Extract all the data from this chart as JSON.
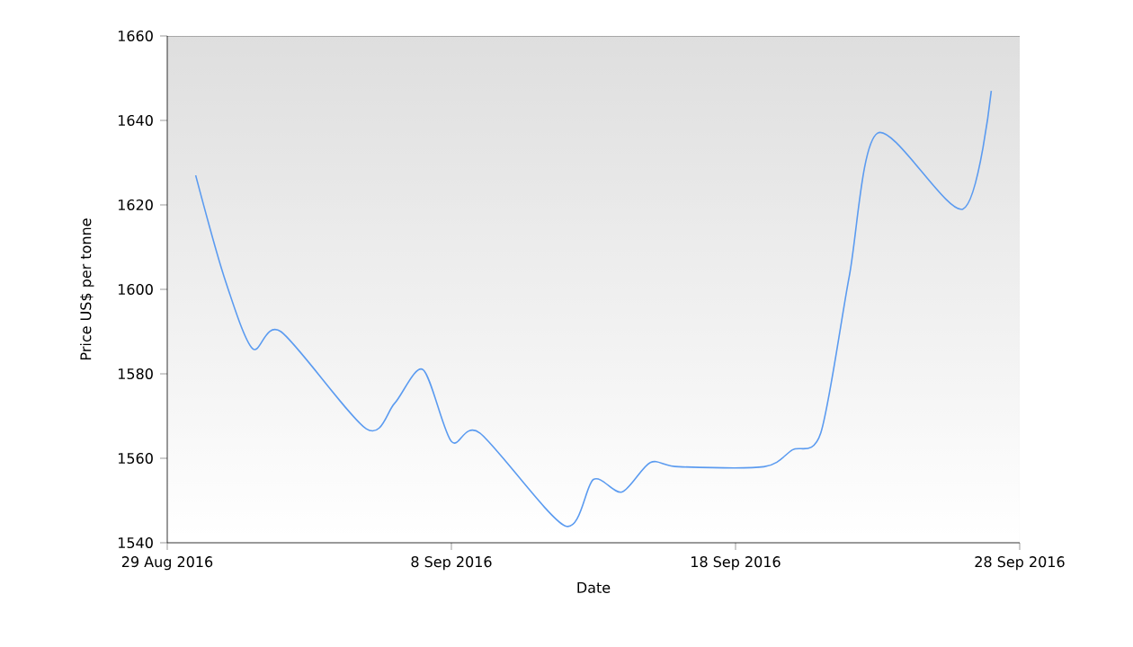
{
  "chart_data": {
    "type": "line",
    "xlabel": "Date",
    "ylabel": "Price US$ per tonne",
    "x": [
      "2016-08-30",
      "2016-08-31",
      "2016-09-01",
      "2016-09-02",
      "2016-09-05",
      "2016-09-06",
      "2016-09-07",
      "2016-09-08",
      "2016-09-09",
      "2016-09-12",
      "2016-09-13",
      "2016-09-14",
      "2016-09-15",
      "2016-09-16",
      "2016-09-19",
      "2016-09-20",
      "2016-09-21",
      "2016-09-22",
      "2016-09-23",
      "2016-09-26",
      "2016-09-27"
    ],
    "series": [
      {
        "color": "#5b9bf0",
        "values": [
          1627,
          1603,
          1586,
          1590,
          1567,
          1573,
          1581,
          1564,
          1566,
          1544,
          1555,
          1552,
          1559,
          1558,
          1558,
          1562,
          1566,
          1603,
          1637,
          1619,
          1647
        ]
      }
    ],
    "xlim": [
      "2016-08-29",
      "2016-09-28"
    ],
    "xticks": [
      {
        "value": "2016-08-29",
        "label": "29 Aug 2016"
      },
      {
        "value": "2016-09-08",
        "label": "8 Sep 2016"
      },
      {
        "value": "2016-09-18",
        "label": "18 Sep 2016"
      },
      {
        "value": "2016-09-28",
        "label": "28 Sep 2016"
      }
    ],
    "ylim": [
      1540,
      1660
    ],
    "yticks": [
      1540,
      1560,
      1580,
      1600,
      1620,
      1640,
      1660
    ],
    "grid": false,
    "marker": "none",
    "line_style": "solid"
  }
}
